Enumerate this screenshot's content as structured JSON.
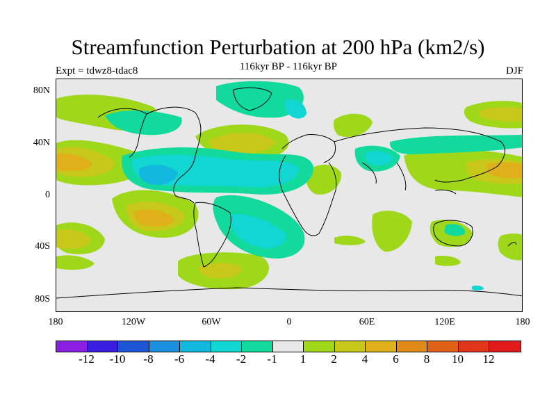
{
  "title": "Streamfunction Perturbation at 200 hPa (km2/s)",
  "subtitle": "116kyr BP - 116kyr BP",
  "left_label": "Expt = tdwz8-tdac8",
  "right_label": "DJF",
  "lat_labels": [
    "80N",
    "40N",
    "0",
    "40S",
    "80S"
  ],
  "lon_labels": [
    "180",
    "120W",
    "60W",
    "0",
    "60E",
    "120E",
    "180"
  ],
  "colorbar": {
    "labels": [
      "-12",
      "-10",
      "-8",
      "-6",
      "-4",
      "-2",
      "-1",
      "1",
      "2",
      "4",
      "6",
      "8",
      "10",
      "12"
    ],
    "colors": [
      "#8a1fe0",
      "#3a1ee0",
      "#1c55d6",
      "#1b8fe0",
      "#12b8de",
      "#12d6d2",
      "#12d99c",
      "#e8e8e8",
      "#9fd81a",
      "#c8c81a",
      "#e0b01a",
      "#e08a1a",
      "#e0621a",
      "#e0361a",
      "#e01a1a"
    ]
  }
}
